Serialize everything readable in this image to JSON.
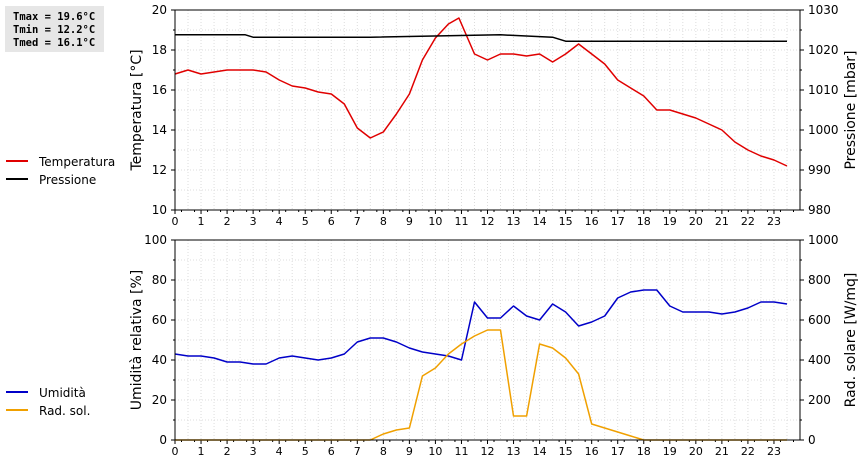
{
  "stats": {
    "tmax": "Tmax = 19.6°C",
    "tmin": "Tmin = 12.2°C",
    "tmed": "Tmed = 16.1°C"
  },
  "chart_data": [
    {
      "type": "line",
      "title": "",
      "xlabel": "",
      "ylabel": "Temperatura [°C]",
      "y2label": "Pressione [mbar]",
      "xlim": [
        0,
        24
      ],
      "ylim": [
        10,
        20
      ],
      "y2lim": [
        980,
        1030
      ],
      "xticks": [
        "0",
        "1",
        "2",
        "3",
        "4",
        "5",
        "6",
        "7",
        "8",
        "9",
        "10",
        "11",
        "12",
        "13",
        "14",
        "15",
        "16",
        "17",
        "18",
        "19",
        "20",
        "21",
        "22",
        "23"
      ],
      "yticks": [
        "10",
        "12",
        "14",
        "16",
        "18",
        "20"
      ],
      "y2ticks": [
        "980",
        "990",
        "1000",
        "1010",
        "1020",
        "1030"
      ],
      "grid": true,
      "legend": "left",
      "series": [
        {
          "name": "Temperatura",
          "color": "#e00000",
          "axis": "left",
          "x": [
            0,
            0.5,
            1,
            1.5,
            2,
            2.5,
            3,
            3.5,
            4,
            4.5,
            5,
            5.5,
            6,
            6.5,
            7,
            7.5,
            8,
            8.5,
            9,
            9.5,
            10,
            10.5,
            10.9,
            11.5,
            12,
            12.5,
            13,
            13.5,
            14,
            14.5,
            15,
            15.5,
            16,
            16.5,
            17,
            17.5,
            18,
            18.5,
            19,
            19.5,
            20,
            20.5,
            21,
            21.5,
            22,
            22.5,
            23,
            23.5
          ],
          "y": [
            16.8,
            17.0,
            16.8,
            16.9,
            17.0,
            17.0,
            17.0,
            16.9,
            16.5,
            16.2,
            16.1,
            15.9,
            15.8,
            15.3,
            14.1,
            13.6,
            13.9,
            14.8,
            15.8,
            17.5,
            18.6,
            19.3,
            19.6,
            17.8,
            17.5,
            17.8,
            17.8,
            17.7,
            17.8,
            17.4,
            17.8,
            18.3,
            17.8,
            17.3,
            16.5,
            16.1,
            15.7,
            15.0,
            15.0,
            14.8,
            14.6,
            14.3,
            14.0,
            13.4,
            13.0,
            12.7,
            12.5,
            12.2
          ]
        },
        {
          "name": "Pressione",
          "color": "#000000",
          "axis": "right",
          "x": [
            0,
            2.7,
            3,
            7.5,
            12.5,
            14.5,
            15,
            23.5
          ],
          "y": [
            1023.8,
            1023.8,
            1023.2,
            1023.2,
            1023.8,
            1023.2,
            1022.2,
            1022.2
          ]
        }
      ]
    },
    {
      "type": "line",
      "title": "",
      "xlabel": "",
      "ylabel": "Umidità relativa [%]",
      "y2label": "Rad. solare [W/mq]",
      "xlim": [
        0,
        24
      ],
      "ylim": [
        0,
        100
      ],
      "y2lim": [
        0,
        1000
      ],
      "xticks": [
        "0",
        "1",
        "2",
        "3",
        "4",
        "5",
        "6",
        "7",
        "8",
        "9",
        "10",
        "11",
        "12",
        "13",
        "14",
        "15",
        "16",
        "17",
        "18",
        "19",
        "20",
        "21",
        "22",
        "23"
      ],
      "yticks": [
        "0",
        "20",
        "40",
        "60",
        "80",
        "100"
      ],
      "y2ticks": [
        "0",
        "200",
        "400",
        "600",
        "800",
        "1000"
      ],
      "grid": true,
      "legend": "left",
      "series": [
        {
          "name": "Umidità",
          "color": "#0000c8",
          "axis": "left",
          "x": [
            0,
            0.5,
            1,
            1.5,
            2,
            2.5,
            3,
            3.5,
            4,
            4.5,
            5,
            5.5,
            6,
            6.5,
            7,
            7.5,
            8,
            8.5,
            9,
            9.5,
            10,
            10.5,
            11,
            11.5,
            12,
            12.5,
            13,
            13.5,
            14,
            14.5,
            15,
            15.5,
            16,
            16.5,
            17,
            17.5,
            18,
            18.5,
            19,
            19.5,
            20,
            20.5,
            21,
            21.5,
            22,
            22.5,
            23,
            23.5
          ],
          "y": [
            43,
            42,
            42,
            41,
            39,
            39,
            38,
            38,
            41,
            42,
            41,
            40,
            41,
            43,
            49,
            51,
            51,
            49,
            46,
            44,
            43,
            42,
            40,
            69,
            61,
            61,
            67,
            62,
            60,
            68,
            64,
            57,
            59,
            62,
            71,
            74,
            75,
            75,
            67,
            64,
            64,
            64,
            63,
            64,
            66,
            69,
            69,
            68
          ]
        },
        {
          "name": "Rad. sol.",
          "color": "#f0a000",
          "axis": "right",
          "x": [
            0,
            1,
            2,
            3,
            4,
            5,
            6,
            7,
            7.5,
            8,
            8.5,
            9,
            9.5,
            10,
            10.5,
            11,
            11.5,
            12,
            12.5,
            13,
            13.5,
            14,
            14.5,
            15,
            15.5,
            16,
            16.5,
            17,
            17.5,
            18,
            19,
            20,
            21,
            22,
            23,
            23.5
          ],
          "y": [
            0,
            0,
            0,
            0,
            0,
            0,
            0,
            0,
            0,
            30,
            50,
            60,
            320,
            360,
            430,
            480,
            520,
            550,
            550,
            120,
            120,
            480,
            460,
            410,
            330,
            80,
            60,
            40,
            20,
            0,
            0,
            0,
            0,
            0,
            0,
            0
          ]
        }
      ]
    }
  ]
}
